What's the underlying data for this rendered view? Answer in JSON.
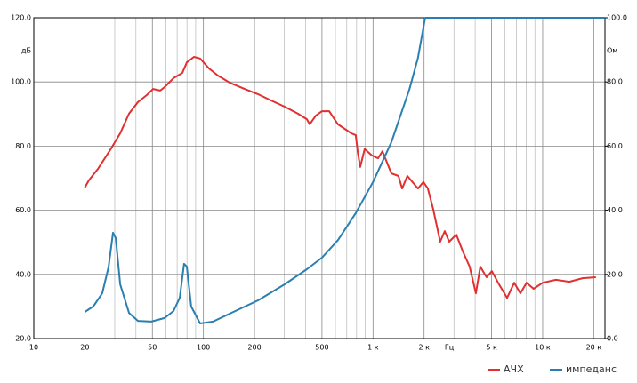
{
  "chart_data": {
    "type": "line",
    "x_log": true,
    "grid": true,
    "legend": "bottom-right",
    "y_unit": "дБ",
    "y2_unit": "Ом",
    "x_unit": "Гц",
    "xlim": [
      10,
      23300
    ],
    "xticks": [
      10,
      20,
      50,
      100,
      200,
      500,
      {
        "value": 1000,
        "label": "1 к"
      },
      {
        "value": 2000,
        "label": "2 к"
      },
      {
        "value": 5000,
        "label": "5 к"
      },
      {
        "value": 10000,
        "label": "10 к"
      },
      {
        "value": 20000,
        "label": "20 к"
      }
    ],
    "xminor": [
      30,
      40,
      60,
      70,
      80,
      90,
      300,
      400,
      600,
      700,
      800,
      900,
      3000,
      4000,
      6000,
      7000,
      8000,
      9000
    ],
    "ylim": [
      20,
      120
    ],
    "yticks": [
      {
        "value": 20,
        "label": "20.0"
      },
      {
        "value": 40,
        "label": "40.0"
      },
      {
        "value": 60,
        "label": "60.0"
      },
      {
        "value": 80,
        "label": "80.0"
      },
      {
        "value": 100,
        "label": "100.0"
      },
      {
        "value": 120,
        "label": "120.0"
      }
    ],
    "y2lim": [
      0,
      100
    ],
    "y2ticks": [
      {
        "value": 0,
        "label": "0.0"
      },
      {
        "value": 20,
        "label": "20.0"
      },
      {
        "value": 40,
        "label": "40.0"
      },
      {
        "value": 60,
        "label": "60.0"
      },
      {
        "value": 80,
        "label": "80.0"
      },
      {
        "value": 100,
        "label": "100.0"
      }
    ],
    "series": [
      {
        "name": "АЧХ",
        "color": "#e03030",
        "x": [
          20,
          21.1,
          23.9,
          28.6,
          32.3,
          36.4,
          41.1,
          46.3,
          50.5,
          55.6,
          59,
          66.6,
          75.1,
          79.8,
          87.9,
          95.6,
          107.8,
          121.7,
          142.5,
          174.9,
          209.6,
          251,
          301,
          361,
          407,
          423,
          460,
          500,
          551,
          621,
          745,
          791,
          811,
          840,
          893,
          984,
          1070,
          1137,
          1283,
          1413,
          1484,
          1594,
          1841,
          1981,
          2103,
          2261,
          2490,
          2646,
          2812,
          3096,
          3371,
          3710,
          4040,
          4290,
          4670,
          5020,
          5460,
          6170,
          6800,
          7390,
          8040,
          8840,
          10000,
          11970,
          14350,
          17190,
          20600
        ],
        "values": [
          67.1,
          69.3,
          72.9,
          79.3,
          84,
          90.1,
          93.7,
          95.9,
          97.8,
          97.3,
          98.4,
          101.2,
          102.8,
          106.1,
          107.8,
          107.3,
          104.2,
          102,
          99.8,
          97.8,
          96.2,
          94.2,
          92.3,
          90.1,
          88.4,
          86.8,
          89.5,
          90.9,
          90.9,
          86.8,
          84,
          83.4,
          78.4,
          73.5,
          79.1,
          77.1,
          76.2,
          78.4,
          71.5,
          70.7,
          66.8,
          70.7,
          66.8,
          68.8,
          66.8,
          60.4,
          50.2,
          53.5,
          50.2,
          52.4,
          47.4,
          42.4,
          34.1,
          42.4,
          39.1,
          41,
          37.4,
          32.7,
          37.4,
          34.1,
          37.4,
          35.5,
          37.4,
          38.3,
          37.7,
          38.8,
          39.1
        ]
      },
      {
        "name": "импеданс",
        "color": "#2a7fb0",
        "axis": "y2",
        "x": [
          20,
          22.4,
          25.3,
          27.6,
          29.3,
          30.4,
          32.3,
          36.4,
          41.1,
          49.3,
          59,
          66.6,
          72.5,
          76.9,
          79.8,
          84.7,
          95.6,
          114,
          146,
          210,
          301,
          407,
          500,
          621,
          791,
          1000,
          1283,
          1640,
          1841,
          2030,
          23300
        ],
        "values": [
          8.3,
          10,
          14.1,
          22.4,
          33,
          31.3,
          16.9,
          8,
          5.5,
          5.3,
          6.4,
          8.6,
          12.7,
          23.3,
          22.4,
          10,
          4.7,
          5.3,
          8,
          11.9,
          16.9,
          21.6,
          25.2,
          30.7,
          39.1,
          48.8,
          61.2,
          77.8,
          87.5,
          100,
          100
        ]
      }
    ]
  }
}
